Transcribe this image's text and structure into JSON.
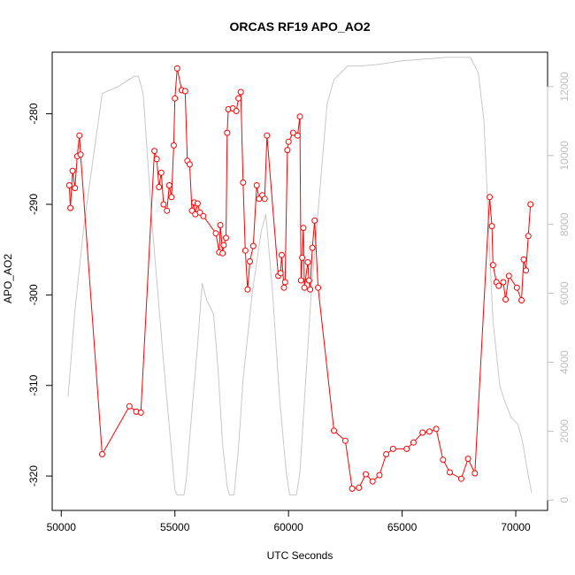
{
  "chart_data": {
    "type": "line",
    "title": "ORCAS RF19 APO_AO2",
    "xlabel": "UTC Seconds",
    "ylabel": "APO_AO2",
    "xlim": [
      49600,
      71400
    ],
    "ylim": [
      -323.8,
      -273.2
    ],
    "y2lim": [
      -300,
      13000
    ],
    "x_ticks": [
      50000,
      55000,
      60000,
      65000,
      70000
    ],
    "y_ticks": [
      -320,
      -310,
      -300,
      -290,
      -280
    ],
    "y2_ticks": [
      0,
      2000,
      4000,
      6000,
      8000,
      10000,
      12000
    ],
    "grid": false,
    "legend": "none",
    "colors": {
      "primary": "#ff0000",
      "secondary": "#c8c8c8",
      "axis": "#000000",
      "secondary_axis": "#bebebe"
    },
    "series": [
      {
        "axis": "left",
        "style": "line+points",
        "points": [
          [
            50350,
            -287.9
          ],
          [
            50400,
            -290.4
          ],
          [
            50500,
            -286.3
          ],
          [
            50600,
            -288.2
          ],
          [
            50700,
            -284.7
          ],
          [
            50800,
            -282.4
          ],
          [
            50850,
            -284.5
          ],
          [
            51800,
            -317.6
          ],
          [
            53000,
            -312.3
          ],
          [
            53300,
            -312.9
          ],
          [
            53500,
            -313.0
          ],
          [
            54100,
            -284.1
          ],
          [
            54200,
            -285.0
          ],
          [
            54300,
            -288.1
          ],
          [
            54400,
            -286.5
          ],
          [
            54500,
            -290.0
          ],
          [
            54650,
            -290.7
          ],
          [
            54750,
            -287.9
          ],
          [
            54850,
            -289.2
          ],
          [
            54950,
            -283.5
          ],
          [
            55000,
            -278.3
          ],
          [
            55100,
            -275.0
          ],
          [
            55300,
            -277.4
          ],
          [
            55450,
            -277.5
          ],
          [
            55550,
            -285.2
          ],
          [
            55650,
            -285.6
          ],
          [
            55750,
            -290.7
          ],
          [
            55850,
            -289.8
          ],
          [
            55900,
            -291.1
          ],
          [
            56000,
            -289.9
          ],
          [
            56100,
            -290.9
          ],
          [
            56250,
            -291.3
          ],
          [
            56800,
            -293.2
          ],
          [
            56950,
            -295.3
          ],
          [
            57000,
            -292.3
          ],
          [
            57100,
            -295.4
          ],
          [
            57150,
            -294.5
          ],
          [
            57250,
            -293.7
          ],
          [
            57300,
            -282.1
          ],
          [
            57350,
            -279.5
          ],
          [
            57550,
            -279.4
          ],
          [
            57700,
            -279.7
          ],
          [
            57800,
            -278.3
          ],
          [
            57900,
            -277.6
          ],
          [
            58000,
            -287.6
          ],
          [
            58100,
            -295.1
          ],
          [
            58200,
            -299.4
          ],
          [
            58300,
            -296.3
          ],
          [
            58450,
            -294.6
          ],
          [
            58600,
            -287.9
          ],
          [
            58700,
            -289.4
          ],
          [
            58850,
            -289.0
          ],
          [
            58950,
            -289.4
          ],
          [
            59050,
            -282.4
          ],
          [
            59550,
            -297.9
          ],
          [
            59650,
            -297.6
          ],
          [
            59700,
            -295.6
          ],
          [
            59800,
            -299.2
          ],
          [
            59850,
            -298.6
          ],
          [
            59950,
            -284.0
          ],
          [
            60000,
            -283.1
          ],
          [
            60200,
            -282.1
          ],
          [
            60400,
            -282.4
          ],
          [
            60500,
            -280.3
          ],
          [
            60550,
            -298.4
          ],
          [
            60600,
            -295.9
          ],
          [
            60650,
            -292.6
          ],
          [
            60700,
            -299.2
          ],
          [
            60850,
            -296.4
          ],
          [
            60900,
            -298.4
          ],
          [
            60950,
            -299.4
          ],
          [
            61050,
            -294.8
          ],
          [
            61150,
            -291.8
          ],
          [
            61300,
            -299.2
          ],
          [
            62000,
            -315.0
          ],
          [
            62500,
            -316.1
          ],
          [
            62800,
            -321.4
          ],
          [
            63100,
            -321.3
          ],
          [
            63400,
            -319.8
          ],
          [
            63700,
            -320.6
          ],
          [
            64000,
            -319.9
          ],
          [
            64300,
            -317.6
          ],
          [
            64600,
            -317.0
          ],
          [
            65200,
            -317.0
          ],
          [
            65500,
            -316.3
          ],
          [
            65900,
            -315.2
          ],
          [
            66200,
            -315.1
          ],
          [
            66500,
            -314.8
          ],
          [
            66800,
            -318.2
          ],
          [
            67100,
            -319.6
          ],
          [
            67600,
            -320.3
          ],
          [
            67900,
            -318.1
          ],
          [
            68200,
            -319.7
          ],
          [
            68850,
            -289.2
          ],
          [
            68950,
            -292.4
          ],
          [
            69000,
            -296.7
          ],
          [
            69150,
            -298.6
          ],
          [
            69250,
            -299.0
          ],
          [
            69450,
            -298.6
          ],
          [
            69550,
            -300.5
          ],
          [
            69700,
            -297.9
          ],
          [
            70050,
            -299.2
          ],
          [
            70250,
            -300.6
          ],
          [
            70350,
            -296.1
          ],
          [
            70450,
            -297.3
          ],
          [
            70550,
            -293.5
          ],
          [
            70650,
            -290.0
          ]
        ]
      },
      {
        "axis": "right",
        "style": "line",
        "points": [
          [
            50300,
            3000
          ],
          [
            50600,
            5500
          ],
          [
            51000,
            8000
          ],
          [
            51800,
            11800
          ],
          [
            52500,
            12000
          ],
          [
            53200,
            12300
          ],
          [
            53400,
            12300
          ],
          [
            53600,
            11800
          ],
          [
            54000,
            8000
          ],
          [
            54500,
            4000
          ],
          [
            55000,
            300
          ],
          [
            55100,
            150
          ],
          [
            55400,
            150
          ],
          [
            55500,
            600
          ],
          [
            55800,
            3000
          ],
          [
            56000,
            4500
          ],
          [
            56200,
            6300
          ],
          [
            56400,
            5800
          ],
          [
            56700,
            5400
          ],
          [
            56900,
            3800
          ],
          [
            57100,
            1600
          ],
          [
            57300,
            400
          ],
          [
            57400,
            150
          ],
          [
            57600,
            150
          ],
          [
            57800,
            1500
          ],
          [
            58000,
            3500
          ],
          [
            58400,
            6000
          ],
          [
            58800,
            7800
          ],
          [
            59000,
            8300
          ],
          [
            59300,
            6000
          ],
          [
            59600,
            3000
          ],
          [
            59900,
            800
          ],
          [
            60050,
            150
          ],
          [
            60350,
            150
          ],
          [
            60500,
            800
          ],
          [
            61000,
            6000
          ],
          [
            61700,
            11500
          ],
          [
            62000,
            12200
          ],
          [
            62600,
            12600
          ],
          [
            63200,
            12600
          ],
          [
            64000,
            12650
          ],
          [
            65000,
            12750
          ],
          [
            66000,
            12800
          ],
          [
            67000,
            12850
          ],
          [
            68000,
            12850
          ],
          [
            68350,
            12400
          ],
          [
            68600,
            11000
          ],
          [
            68900,
            6500
          ],
          [
            69000,
            5200
          ],
          [
            69300,
            3300
          ],
          [
            69500,
            2900
          ],
          [
            69800,
            2400
          ],
          [
            70100,
            2200
          ],
          [
            70300,
            1700
          ],
          [
            70500,
            900
          ],
          [
            70700,
            200
          ]
        ]
      }
    ]
  }
}
